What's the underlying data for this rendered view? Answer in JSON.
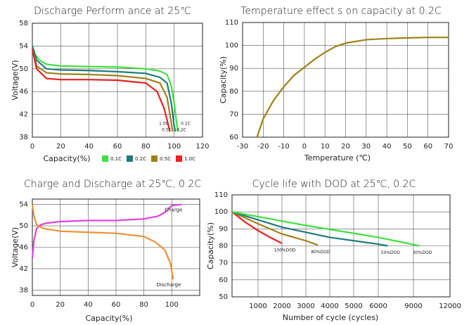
{
  "chart_data": [
    {
      "type": "line",
      "title": "Discharge Perform ance at 25℃",
      "x_label": "Capacity(%)",
      "y_label": "Voltage(V)",
      "xlim": [
        0,
        120
      ],
      "xticks": [
        0,
        20,
        40,
        60,
        80,
        100,
        120
      ],
      "ylim": [
        38,
        58
      ],
      "yticks": [
        38,
        42,
        46,
        50,
        54,
        58
      ],
      "grid": true,
      "legend": "bottom",
      "series": [
        {
          "name": "0.1C",
          "color": "#3ee03e",
          "x": [
            0,
            2,
            5,
            10,
            20,
            40,
            60,
            80,
            90,
            95,
            98,
            100,
            102,
            103
          ],
          "values": [
            54,
            52.5,
            51.5,
            50.8,
            50.5,
            50.4,
            50.3,
            50,
            49.6,
            49,
            47,
            44,
            40,
            39
          ]
        },
        {
          "name": "0.2C",
          "color": "#1e7b7b",
          "x": [
            0,
            3,
            10,
            20,
            40,
            60,
            80,
            90,
            95,
            98,
            100,
            101
          ],
          "values": [
            54,
            51.5,
            50,
            49.8,
            49.7,
            49.5,
            49.2,
            48.5,
            47.5,
            44,
            40,
            39
          ]
        },
        {
          "name": "0.5C",
          "color": "#a08018",
          "x": [
            0,
            3,
            10,
            20,
            40,
            60,
            80,
            90,
            95,
            97,
            99
          ],
          "values": [
            53.5,
            50.5,
            49.3,
            49.1,
            49,
            48.8,
            48.3,
            47.5,
            45,
            42,
            39
          ]
        },
        {
          "name": "1.0C",
          "color": "#e82020",
          "x": [
            0,
            3,
            10,
            20,
            40,
            60,
            80,
            88,
            93,
            96,
            97
          ],
          "values": [
            53.5,
            50,
            48.3,
            48.1,
            48.1,
            48,
            47.5,
            46,
            43,
            40,
            39
          ]
        }
      ],
      "annotations": [
        "1.0C",
        "0.1C",
        "0.5C",
        "0.2C"
      ]
    },
    {
      "type": "line",
      "title": "Temperature effect s on capacity at 0.2C",
      "x_label": "Temperature (℃)",
      "y_label": "Capacity(%)",
      "xlim": [
        -30,
        70
      ],
      "xticks": [
        -30,
        -20,
        -10,
        0,
        10,
        20,
        30,
        40,
        50,
        60,
        70
      ],
      "ylim": [
        60,
        110
      ],
      "yticks": [
        60,
        70,
        80,
        90,
        100,
        110
      ],
      "grid": true,
      "series": [
        {
          "color": "#a08018",
          "x": [
            -23,
            -20,
            -15,
            -10,
            -5,
            0,
            5,
            10,
            15,
            20,
            30,
            40,
            50,
            60,
            70
          ],
          "values": [
            60,
            68,
            76,
            82,
            87,
            90.5,
            94,
            97,
            99.5,
            101,
            102.5,
            103,
            103.3,
            103.5,
            103.5
          ]
        }
      ]
    },
    {
      "type": "line",
      "title": "Charge and Discharge at 25℃, 0.2C",
      "x_label": "Capacity(%)",
      "y_label": "Voltage(V)",
      "xlim": [
        0,
        120
      ],
      "xticks": [
        0,
        20,
        40,
        60,
        80,
        100
      ],
      "ylim": [
        37,
        55
      ],
      "yticks": [
        38,
        42,
        46,
        50,
        54
      ],
      "grid": true,
      "legend": "inline",
      "series": [
        {
          "name": "Charge",
          "color": "#e040e0",
          "x": [
            0,
            1,
            3,
            6,
            10,
            20,
            40,
            60,
            80,
            90,
            95,
            100,
            107
          ],
          "values": [
            44,
            47,
            49.5,
            50.2,
            50.5,
            50.8,
            51,
            51,
            51.3,
            51.8,
            52.5,
            53.8,
            54
          ]
        },
        {
          "name": "Discharge",
          "color": "#f09030",
          "x": [
            0,
            1,
            3,
            8,
            20,
            40,
            60,
            80,
            88,
            95,
            99,
            101
          ],
          "values": [
            54,
            52,
            50.2,
            49.5,
            49,
            48.8,
            48.6,
            48,
            47,
            45.5,
            43,
            40
          ]
        }
      ]
    },
    {
      "type": "line",
      "title": "Cycle life with DOD  at 25℃, 0.2C",
      "x_label": "Number of cycle (cycles)",
      "y_label": "Capacity(%)",
      "xlim": [
        0,
        12000
      ],
      "xticks": [
        1000,
        2000,
        3000,
        4000,
        5000,
        6000,
        9000,
        12000
      ],
      "ylim": [
        50,
        110
      ],
      "yticks": [
        50,
        60,
        70,
        80,
        90,
        100,
        110
      ],
      "grid": true,
      "legend": "inline",
      "series": [
        {
          "name": "100%DOD",
          "color": "#e82020",
          "x": [
            0,
            500,
            1000,
            1500,
            2000
          ],
          "values": [
            100,
            94,
            89,
            85,
            81.5
          ]
        },
        {
          "name": "80%DOD",
          "color": "#a08018",
          "x": [
            0,
            1000,
            2000,
            3000,
            3500
          ],
          "values": [
            100,
            93,
            87,
            83,
            80.5
          ]
        },
        {
          "name": "50%DOD",
          "color": "#1e7b7b",
          "x": [
            0,
            2000,
            4000,
            6000,
            6800
          ],
          "values": [
            100,
            91,
            85,
            81,
            80
          ]
        },
        {
          "name": "30%DOD",
          "color": "#3ee03e",
          "x": [
            0,
            3000,
            6000,
            9500
          ],
          "values": [
            100,
            92,
            85,
            80
          ]
        }
      ]
    }
  ]
}
